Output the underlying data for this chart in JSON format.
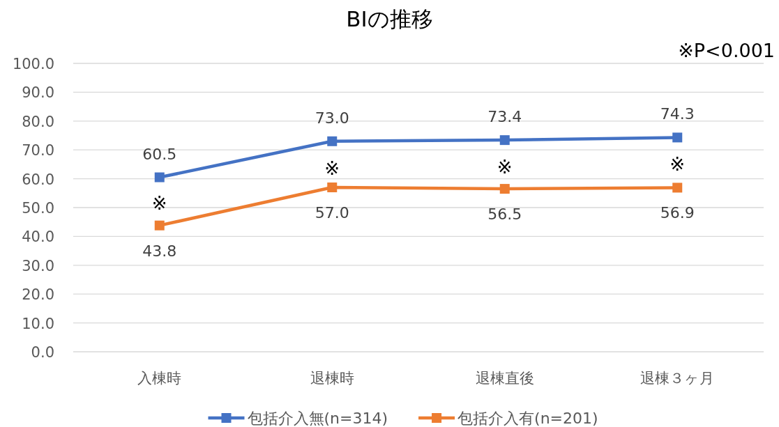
{
  "chart_data": {
    "type": "line",
    "title": "BIの推移",
    "categories": [
      "入棟時",
      "退棟時",
      "退棟直後",
      "退棟３ヶ月"
    ],
    "series": [
      {
        "name": "包括介入無(n=314)",
        "color": "#4472c4",
        "values": [
          60.5,
          73.0,
          73.4,
          74.3
        ],
        "value_labels": [
          "60.5",
          "73.0",
          "73.4",
          "74.3"
        ]
      },
      {
        "name": "包括介入有(n=201)",
        "color": "#ed7d31",
        "values": [
          43.8,
          57.0,
          56.5,
          56.9
        ],
        "value_labels": [
          "43.8",
          "57.0",
          "56.5",
          "56.9"
        ]
      }
    ],
    "ylim": [
      0,
      100
    ],
    "yticks": [
      {
        "value": 0,
        "label": "0.0"
      },
      {
        "value": 10,
        "label": "10.0"
      },
      {
        "value": 20,
        "label": "20.0"
      },
      {
        "value": 30,
        "label": "30.0"
      },
      {
        "value": 40,
        "label": "40.0"
      },
      {
        "value": 50,
        "label": "50.0"
      },
      {
        "value": 60,
        "label": "60.0"
      },
      {
        "value": 70,
        "label": "70.0"
      },
      {
        "value": 80,
        "label": "80.0"
      },
      {
        "value": 90,
        "label": "90.0"
      },
      {
        "value": 100,
        "label": "100.0"
      }
    ],
    "grid": "y",
    "legend": "bottom",
    "marker": "square",
    "line_style": "solid",
    "annotations": [
      "※P<0.001",
      "※",
      "※",
      "※",
      "※"
    ]
  }
}
